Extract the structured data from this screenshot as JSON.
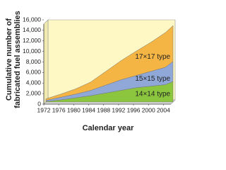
{
  "chart_data": {
    "type": "area",
    "y_label": [
      "Cumulative number of",
      "fabricated fuel assemblies"
    ],
    "x_label": "Calendar year",
    "x": [
      1972,
      1976,
      1980,
      1984,
      1988,
      1992,
      1996,
      2000,
      2004,
      2006
    ],
    "series": [
      {
        "name": "14×14 type",
        "color": "#8cc63f",
        "values": [
          100,
          400,
          800,
          1200,
          1700,
          2200,
          2700,
          3000,
          3300,
          3900
        ]
      },
      {
        "name": "15×15 type",
        "color": "#8fa8d8",
        "values": [
          200,
          500,
          700,
          1000,
          1500,
          2000,
          2300,
          2800,
          3300,
          3800
        ]
      },
      {
        "name": "17×17 type",
        "color": "#f5b544",
        "values": [
          300,
          600,
          1000,
          1600,
          2600,
          3600,
          4600,
          5500,
          6600,
          6800
        ]
      }
    ],
    "stacked": true,
    "xlim": [
      1972,
      2006
    ],
    "xticks": [
      1972,
      1976,
      1980,
      1984,
      1988,
      1992,
      1996,
      2000,
      2004
    ],
    "ylim": [
      0,
      16000
    ],
    "yticks": [
      0,
      {
        "value": 2000,
        "label": "2,000"
      },
      {
        "value": 4000,
        "label": "4,000"
      },
      {
        "value": 6000,
        "label": "6,000"
      },
      {
        "value": 8000,
        "label": "8,000"
      },
      {
        "value": 10000,
        "label": "10,000"
      },
      {
        "value": 12000,
        "label": "12,000"
      },
      {
        "value": 14000,
        "label": "14,000"
      },
      {
        "value": 16000,
        "label": "16,000"
      }
    ],
    "background": "#fdf8c4"
  }
}
